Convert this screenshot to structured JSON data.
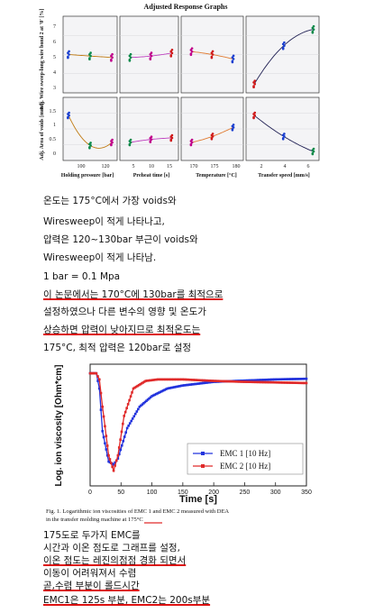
{
  "figure1": {
    "title": "Adjusted Response Graphs",
    "ylabel_top": "Adj. Wire sweep-long wire bond 2 at '0' [%]",
    "ylabel_bottom": "Adj. Area of voids [mm²]",
    "yticks_top": [
      "7",
      "6",
      "5",
      "4",
      "3"
    ],
    "yticks_bottom": [
      "1.5",
      "1",
      "0.5",
      "0"
    ],
    "panels": [
      {
        "xlabel": "Holding pressure [bar]",
        "xticks": [
          "100",
          "120"
        ]
      },
      {
        "xlabel": "Preheat time [s]",
        "xticks": [
          "5",
          "10",
          "15"
        ]
      },
      {
        "xlabel": "Temperature [°C]",
        "xticks": [
          "170",
          "175",
          "180"
        ]
      },
      {
        "xlabel": "Transfer speed [mm/s]",
        "xticks": [
          "2",
          "4",
          "6"
        ]
      }
    ]
  },
  "notes1": [
    "온도는 175°C에서 가장 voids와",
    "Wiresweep이 적게 나타나고,",
    "압력은 120~130bar 부근이 voids와",
    "Wiresweep이 적게 나타남.",
    "1 bar = 0.1 Mpa",
    "이 논문에서는 170°C에 130bar를 최적으로",
    "설정하였으나 다른 변수의 영향 및 온도가",
    "상승하면 압력이 낮아지므로 최적온도는",
    "175°C, 최적 압력은 120bar로 설정"
  ],
  "figure2": {
    "ylabel": "Log. ion viscosity [Ohm*cm]",
    "xlabel": "Time [s]",
    "xticks": [
      "0",
      "50",
      "100",
      "150",
      "200",
      "250",
      "300",
      "350"
    ],
    "legend": [
      "EMC 1 [10 Hz]",
      "EMC 2 [10 Hz]"
    ],
    "caption_line1": "Fig. 1.    Logarithmic ion viscosities of EMC 1 and EMC 2 measured with DEA",
    "caption_line2_pre": "in the transfer molding machine at ",
    "caption_line2_highlight": "175°C",
    "colors": {
      "emc1": "#2233dd",
      "emc2": "#e02a2a"
    }
  },
  "notes2": [
    "175도로 두가지 EMC를",
    "시간과 이온 점도로 그래프를 설정,",
    "이온 점도는 레진의점점 경화 되면서",
    "이동이 어려워져서 수렴",
    "곧,수렴 부분이 롤드시간",
    "EMC1은 125s 부분, EMC2는 200s부분"
  ],
  "chart_data": [
    {
      "type": "scatter",
      "title": "Adjusted Response Graphs",
      "note": "4 factor panels x 2 responses; values estimated from plot",
      "series": [
        {
          "name": "Wire sweep - Holding pressure",
          "x": [
            90,
            110,
            130
          ],
          "y": [
            5.2,
            5.1,
            5.0
          ]
        },
        {
          "name": "Wire sweep - Preheat time",
          "x": [
            3,
            9,
            15
          ],
          "y": [
            5.0,
            5.1,
            5.3
          ]
        },
        {
          "name": "Wire sweep - Temperature",
          "x": [
            166,
            174,
            182
          ],
          "y": [
            5.4,
            5.2,
            4.9
          ]
        },
        {
          "name": "Wire sweep - Transfer speed",
          "x": [
            1.5,
            4,
            6.5
          ],
          "y": [
            3.2,
            5.8,
            6.9
          ]
        },
        {
          "name": "Voids - Holding pressure",
          "x": [
            90,
            110,
            130
          ],
          "y": [
            1.3,
            0.3,
            0.4
          ]
        },
        {
          "name": "Voids - Preheat time",
          "x": [
            3,
            9,
            15
          ],
          "y": [
            0.4,
            0.5,
            0.55
          ]
        },
        {
          "name": "Voids - Temperature",
          "x": [
            166,
            174,
            182
          ],
          "y": [
            0.4,
            0.6,
            0.9
          ]
        },
        {
          "name": "Voids - Transfer speed",
          "x": [
            1.5,
            4,
            6.5
          ],
          "y": [
            1.3,
            0.6,
            0.1
          ]
        }
      ]
    },
    {
      "type": "line",
      "xlabel": "Time [s]",
      "ylabel": "Log. ion viscosity [Ohm*cm]",
      "xlim": [
        0,
        350
      ],
      "series": [
        {
          "name": "EMC 1 [10 Hz]",
          "x": [
            0,
            10,
            15,
            20,
            30,
            38,
            45,
            60,
            80,
            100,
            125,
            150,
            200,
            250,
            300,
            350
          ],
          "y": [
            8.7,
            8.7,
            8.2,
            6.8,
            5.8,
            5.7,
            5.9,
            6.9,
            7.6,
            7.95,
            8.2,
            8.3,
            8.42,
            8.46,
            8.5,
            8.52
          ]
        },
        {
          "name": "EMC 2 [10 Hz]",
          "x": [
            0,
            10,
            15,
            20,
            30,
            38,
            45,
            55,
            70,
            90,
            110,
            130,
            150,
            200,
            250,
            300,
            350
          ],
          "y": [
            8.7,
            8.7,
            8.5,
            7.6,
            6.0,
            5.5,
            6.0,
            7.3,
            8.2,
            8.45,
            8.5,
            8.5,
            8.5,
            8.45,
            8.42,
            8.4,
            8.38
          ]
        }
      ]
    }
  ]
}
